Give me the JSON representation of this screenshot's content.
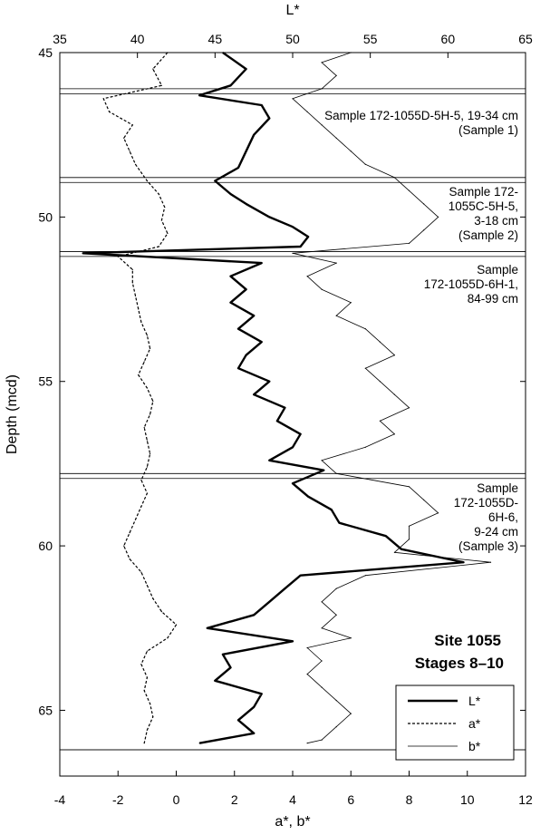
{
  "chart_data": {
    "type": "line",
    "orientation": "depth-profile",
    "top_axis": {
      "label": "L*",
      "ticks": [
        35,
        40,
        45,
        50,
        55,
        60,
        65
      ],
      "range": [
        35,
        65
      ]
    },
    "bottom_axis": {
      "label": "a*, b*",
      "ticks": [
        -4,
        -2,
        0,
        2,
        4,
        6,
        8,
        10,
        12
      ],
      "range": [
        -4,
        12
      ]
    },
    "y_axis": {
      "label": "Depth (mcd)",
      "ticks": [
        45,
        50,
        55,
        60,
        65
      ],
      "range": [
        45,
        67
      ],
      "inverted": true
    },
    "annotation": {
      "line1": "Site 1055",
      "line2": "Stages 8–10"
    },
    "legend": {
      "placement": "bottom-right",
      "items": [
        {
          "label": "L*",
          "style": "thick"
        },
        {
          "label": "a*",
          "style": "dashed"
        },
        {
          "label": "b*",
          "style": "thin"
        }
      ]
    },
    "sample_intervals": [
      {
        "top": 46.1,
        "bottom": 46.25,
        "label": []
      },
      {
        "top": 48.8,
        "bottom": 48.95,
        "label": [
          "Sample 172-1055D-5H-5, 19-34 cm",
          "(Sample 1)"
        ]
      },
      {
        "top": 51.05,
        "bottom": 51.2,
        "label": [
          "Sample 172-",
          "1055C-5H-5,",
          "3-18 cm",
          "(Sample 2)"
        ]
      },
      {
        "top": 57.8,
        "bottom": 57.95,
        "label": [
          "Sample",
          "172-1055D-6H-1,",
          "84-99 cm"
        ]
      },
      {
        "top": 66.2,
        "bottom": 66.2,
        "label": [
          "Sample",
          "172-1055D-",
          "6H-6,",
          "9-24 cm",
          "(Sample 3)"
        ]
      }
    ],
    "series": [
      {
        "name": "L*",
        "axis": "top",
        "depth": [
          45.0,
          45.5,
          46.0,
          46.3,
          46.6,
          47.0,
          47.5,
          48.0,
          48.5,
          48.9,
          49.3,
          49.6,
          50.0,
          50.3,
          50.6,
          50.9,
          51.1,
          51.4,
          51.8,
          52.2,
          52.6,
          53.0,
          53.4,
          53.8,
          54.2,
          54.6,
          55.0,
          55.4,
          55.8,
          56.2,
          56.6,
          57.0,
          57.4,
          57.7,
          58.1,
          58.5,
          58.9,
          59.3,
          59.7,
          60.1,
          60.5,
          60.9,
          61.3,
          61.7,
          62.1,
          62.5,
          62.9,
          63.3,
          63.7,
          64.1,
          64.5,
          64.9,
          65.3,
          65.7,
          66.0
        ],
        "values": [
          45.5,
          47.0,
          46.0,
          44.0,
          48.0,
          48.5,
          47.5,
          47.0,
          46.5,
          45.0,
          46.0,
          47.0,
          48.5,
          50.0,
          51.0,
          50.5,
          36.5,
          48.0,
          46.0,
          47.0,
          46.0,
          47.5,
          46.5,
          48.0,
          47.0,
          46.5,
          48.5,
          47.5,
          49.5,
          49.0,
          50.5,
          50.0,
          48.5,
          52.0,
          50.0,
          51.0,
          52.5,
          53.0,
          56.0,
          57.0,
          61.0,
          50.5,
          49.5,
          48.5,
          47.5,
          44.5,
          50.0,
          45.5,
          46.0,
          45.0,
          48.0,
          47.5,
          46.5,
          47.5,
          44.0
        ]
      },
      {
        "name": "a*",
        "axis": "bottom",
        "depth": [
          45.0,
          45.5,
          46.0,
          46.4,
          46.8,
          47.2,
          47.6,
          48.0,
          48.4,
          48.9,
          49.3,
          49.7,
          50.1,
          50.5,
          50.9,
          51.2,
          51.6,
          52.0,
          52.4,
          52.8,
          53.2,
          53.6,
          54.0,
          54.4,
          54.8,
          55.2,
          55.6,
          56.0,
          56.4,
          56.8,
          57.2,
          57.6,
          58.0,
          58.4,
          58.8,
          59.2,
          59.6,
          60.0,
          60.4,
          60.8,
          61.2,
          61.6,
          62.0,
          62.4,
          62.8,
          63.2,
          63.6,
          64.0,
          64.4,
          64.8,
          65.2,
          65.6,
          66.0
        ],
        "values": [
          -0.3,
          -0.8,
          -0.5,
          -2.5,
          -2.3,
          -1.5,
          -1.8,
          -1.6,
          -1.4,
          -1.0,
          -0.6,
          -0.4,
          -0.5,
          -0.3,
          -0.6,
          -2.0,
          -1.5,
          -1.5,
          -1.4,
          -1.3,
          -1.2,
          -1.0,
          -0.9,
          -1.1,
          -1.3,
          -1.0,
          -0.8,
          -0.9,
          -1.1,
          -1.0,
          -0.9,
          -1.0,
          -1.2,
          -1.0,
          -1.2,
          -1.4,
          -1.6,
          -1.8,
          -1.6,
          -1.2,
          -1.0,
          -0.8,
          -0.5,
          0.0,
          -0.3,
          -1.0,
          -1.2,
          -1.0,
          -1.1,
          -0.9,
          -0.8,
          -1.0,
          -1.1
        ]
      },
      {
        "name": "b*",
        "axis": "bottom",
        "depth": [
          45.0,
          45.3,
          45.7,
          46.1,
          46.4,
          46.8,
          47.2,
          47.6,
          48.0,
          48.4,
          48.8,
          49.2,
          49.6,
          50.0,
          50.4,
          50.8,
          51.1,
          51.4,
          51.8,
          52.2,
          52.6,
          53.0,
          53.4,
          53.8,
          54.2,
          54.6,
          55.0,
          55.4,
          55.8,
          56.2,
          56.6,
          57.0,
          57.4,
          57.8,
          58.2,
          58.6,
          59.0,
          59.4,
          59.8,
          60.2,
          60.5,
          60.9,
          61.3,
          61.7,
          62.1,
          62.5,
          62.8,
          63.1,
          63.5,
          63.9,
          64.3,
          64.7,
          65.1,
          65.5,
          65.9,
          66.0
        ],
        "values": [
          6.0,
          5.0,
          5.5,
          5.0,
          4.0,
          4.5,
          5.0,
          5.5,
          6.0,
          6.5,
          7.5,
          8.0,
          8.5,
          9.0,
          8.5,
          8.0,
          4.0,
          5.5,
          4.5,
          5.0,
          6.0,
          5.5,
          6.5,
          7.0,
          7.5,
          6.5,
          7.0,
          7.5,
          8.0,
          7.0,
          7.5,
          6.5,
          5.0,
          5.5,
          8.0,
          8.5,
          9.0,
          8.0,
          8.0,
          7.5,
          10.8,
          6.5,
          5.5,
          5.0,
          5.5,
          5.0,
          6.0,
          4.5,
          5.0,
          4.5,
          5.0,
          5.5,
          6.0,
          5.5,
          5.0,
          4.5
        ]
      }
    ]
  }
}
